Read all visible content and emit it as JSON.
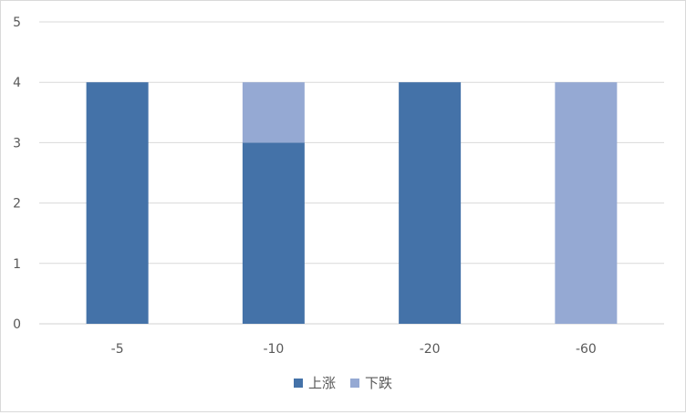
{
  "chart_data": {
    "type": "bar",
    "stacked": true,
    "categories": [
      "-5",
      "-10",
      "-20",
      "-60"
    ],
    "series": [
      {
        "name": "上涨",
        "values": [
          4,
          3,
          4,
          0
        ],
        "color": "#4472a8"
      },
      {
        "name": "下跌",
        "values": [
          0,
          1,
          0,
          4
        ],
        "color": "#95a9d3"
      }
    ],
    "ylim": [
      0,
      5
    ],
    "yticks": [
      0,
      1,
      2,
      3,
      4,
      5
    ],
    "grid": true,
    "legend_position": "bottom"
  }
}
